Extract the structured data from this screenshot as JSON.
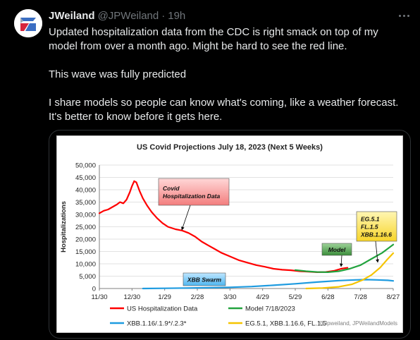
{
  "tweet": {
    "author_name": "JWeiland",
    "handle": "@JPWeiland",
    "separator": "·",
    "time": "19h",
    "lines": [
      "Updated hospitalization data from the CDC is right smack on top of my",
      "model from over a month ago. Might be hard to see the red line.",
      "",
      "This wave was fully predicted",
      "",
      "I share models so people can know what's coming, like a weather forecast.",
      "It's better to know before it gets here."
    ]
  },
  "chart_data": {
    "type": "line",
    "title": "US Covid Projections July 18, 2023 (Next 5 Weeks)",
    "ylabel": "Hospitalizations",
    "xlabel": "",
    "ylim": [
      0,
      50000
    ],
    "yticks": [
      "0",
      "5,000",
      "10,000",
      "15,000",
      "20,000",
      "25,000",
      "30,000",
      "35,000",
      "40,000",
      "45,000",
      "50,000"
    ],
    "xticks": [
      "11/30",
      "12/30",
      "1/29",
      "2/28",
      "3/30",
      "4/29",
      "5/29",
      "6/28",
      "7/28",
      "8/27"
    ],
    "xlim_days": [
      0,
      270
    ],
    "grid": true,
    "legend_position": "bottom",
    "watermark": "@Jpweiland, JPWeilandModels",
    "series": [
      {
        "name": "US Hospitalization Data",
        "color": "#ff0000",
        "points": [
          [
            0,
            30500
          ],
          [
            4,
            31500
          ],
          [
            8,
            32000
          ],
          [
            12,
            33000
          ],
          [
            16,
            34000
          ],
          [
            19,
            35000
          ],
          [
            22,
            34500
          ],
          [
            25,
            36000
          ],
          [
            28,
            39000
          ],
          [
            30,
            41500
          ],
          [
            32,
            43500
          ],
          [
            34,
            43000
          ],
          [
            37,
            39500
          ],
          [
            40,
            36500
          ],
          [
            44,
            33500
          ],
          [
            48,
            31000
          ],
          [
            53,
            28500
          ],
          [
            58,
            26500
          ],
          [
            63,
            25000
          ],
          [
            70,
            24000
          ],
          [
            76,
            23500
          ],
          [
            82,
            22500
          ],
          [
            88,
            21000
          ],
          [
            94,
            19000
          ],
          [
            100,
            17500
          ],
          [
            106,
            16000
          ],
          [
            112,
            14500
          ],
          [
            120,
            13000
          ],
          [
            128,
            11500
          ],
          [
            136,
            10500
          ],
          [
            144,
            9500
          ],
          [
            152,
            8800
          ],
          [
            160,
            8000
          ],
          [
            168,
            7600
          ],
          [
            176,
            7400
          ],
          [
            184,
            7000
          ],
          [
            192,
            6800
          ],
          [
            200,
            6600
          ],
          [
            208,
            6700
          ],
          [
            216,
            7200
          ],
          [
            222,
            8000
          ],
          [
            228,
            8400
          ]
        ]
      },
      {
        "name": "Model 7/18/2023",
        "color": "#22a33e",
        "points": [
          [
            180,
            7500
          ],
          [
            190,
            7000
          ],
          [
            200,
            6700
          ],
          [
            210,
            6600
          ],
          [
            220,
            7000
          ],
          [
            230,
            8000
          ],
          [
            240,
            9500
          ],
          [
            250,
            12000
          ],
          [
            260,
            14500
          ],
          [
            270,
            17800
          ]
        ]
      },
      {
        "name": "XBB.1.16/.1.9*/.2.3*",
        "color": "#1e9be0",
        "points": [
          [
            40,
            0
          ],
          [
            60,
            100
          ],
          [
            80,
            200
          ],
          [
            100,
            300
          ],
          [
            120,
            500
          ],
          [
            140,
            800
          ],
          [
            160,
            1300
          ],
          [
            180,
            1900
          ],
          [
            200,
            2600
          ],
          [
            220,
            3200
          ],
          [
            235,
            3500
          ],
          [
            245,
            3600
          ],
          [
            255,
            3500
          ],
          [
            265,
            3300
          ],
          [
            270,
            3100
          ]
        ]
      },
      {
        "name": "EG.5.1, XBB.1.16.6, FL.1.5",
        "color": "#f5c400",
        "points": [
          [
            190,
            0
          ],
          [
            205,
            200
          ],
          [
            220,
            700
          ],
          [
            232,
            1700
          ],
          [
            242,
            3500
          ],
          [
            250,
            5500
          ],
          [
            258,
            8500
          ],
          [
            264,
            11500
          ],
          [
            270,
            14300
          ]
        ]
      }
    ],
    "annotations": [
      {
        "text": [
          "Covid",
          "Hospitalization Data"
        ],
        "style": "red"
      },
      {
        "text": [
          "XBB Swarm"
        ],
        "style": "blue"
      },
      {
        "text": [
          "Model"
        ],
        "style": "green"
      },
      {
        "text": [
          "EG.5.1",
          "FL.1.5",
          "XBB.1.16.6"
        ],
        "style": "yellow"
      }
    ]
  }
}
